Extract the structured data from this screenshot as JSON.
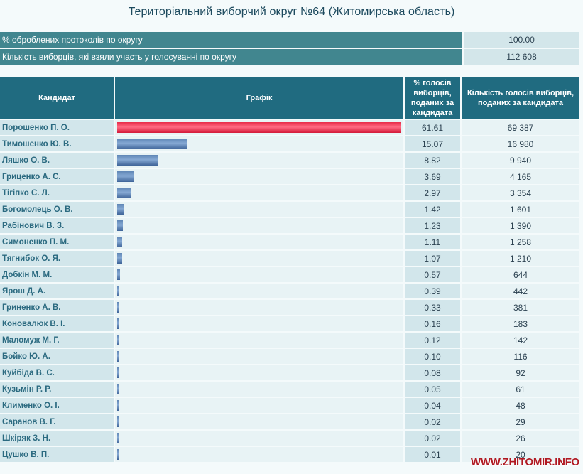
{
  "title": "Територіальний виборчий округ №64 (Житомирська область)",
  "summary": [
    {
      "label": "% оброблених протоколів по округу",
      "value": "100.00"
    },
    {
      "label": "Кількість виборців, які взяли участь у голосуванні по округу",
      "value": "112 608"
    }
  ],
  "headers": {
    "candidate": "Кандидат",
    "graph": "Графік",
    "pct": "% голосів виборців, поданих за кандидата",
    "votes": "Кількість голосів виборців, поданих за кандидата"
  },
  "colors": {
    "header_bg": "#206b80",
    "summary_label_bg": "#41868f",
    "leader_bar": "#e8304d",
    "other_bar": "#4f77aa"
  },
  "chart_data": {
    "type": "bar",
    "orientation": "horizontal",
    "title": "Територіальний виборчий округ №64 (Житомирська область)",
    "xlabel": "% голосів виборців, поданих за кандидата",
    "ylabel": "Кандидат",
    "xlim": [
      0,
      61.61
    ],
    "categories": [
      "Порошенко П. О.",
      "Тимошенко Ю. В.",
      "Ляшко О. В.",
      "Гриценко А. С.",
      "Тігіпко С. Л.",
      "Богомолець О. В.",
      "Рабінович В. З.",
      "Симоненко П. М.",
      "Тягнибок О. Я.",
      "Добкін М. М.",
      "Ярош Д. А.",
      "Гриненко А. В.",
      "Коновалюк В. І.",
      "Маломуж М. Г.",
      "Бойко Ю. А.",
      "Куйбіда В. С.",
      "Кузьмін Р. Р.",
      "Клименко О. І.",
      "Саранов В. Г.",
      "Шкіряк З. Н.",
      "Цушко В. П."
    ],
    "values": [
      61.61,
      15.07,
      8.82,
      3.69,
      2.97,
      1.42,
      1.23,
      1.11,
      1.07,
      0.57,
      0.39,
      0.33,
      0.16,
      0.12,
      0.1,
      0.08,
      0.05,
      0.04,
      0.02,
      0.02,
      0.01
    ],
    "pct_labels": [
      "61.61",
      "15.07",
      "8.82",
      "3.69",
      "2.97",
      "1.42",
      "1.23",
      "1.11",
      "1.07",
      "0.57",
      "0.39",
      "0.33",
      "0.16",
      "0.12",
      "0.10",
      "0.08",
      "0.05",
      "0.04",
      "0.02",
      "0.02",
      "0.01"
    ],
    "votes": [
      "69 387",
      "16 980",
      "9 940",
      "4 165",
      "3 354",
      "1 601",
      "1 390",
      "1 258",
      "1 210",
      "644",
      "442",
      "381",
      "183",
      "142",
      "116",
      "92",
      "61",
      "48",
      "29",
      "26",
      "20"
    ],
    "highlight_index": 0
  },
  "watermark": "WWW.ZHITOMIR.INFO"
}
